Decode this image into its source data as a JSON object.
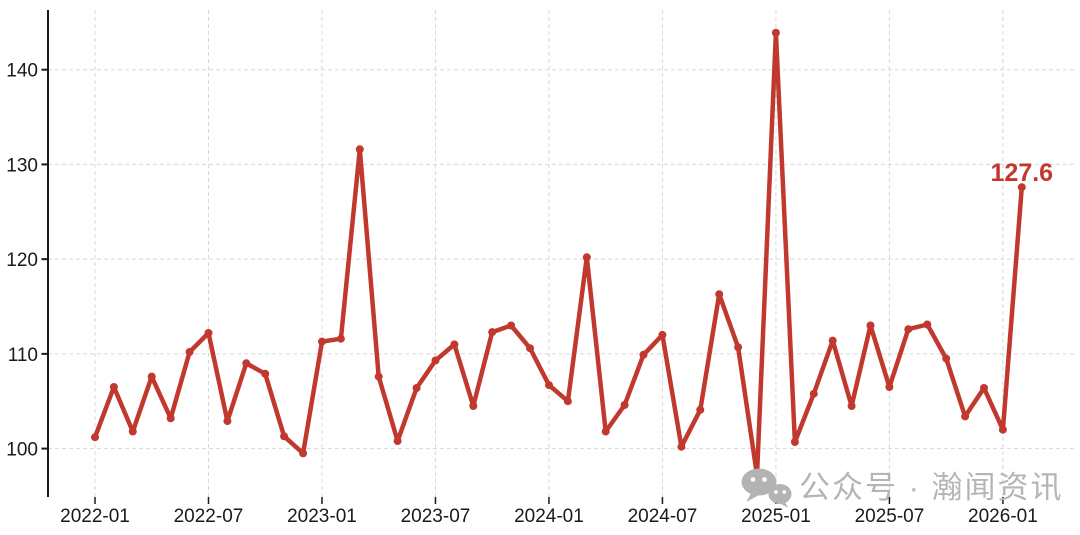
{
  "chart_data": {
    "type": "line",
    "title": "",
    "x": [
      "2022-01",
      "2022-02",
      "2022-03",
      "2022-04",
      "2022-05",
      "2022-06",
      "2022-07",
      "2022-08",
      "2022-09",
      "2022-10",
      "2022-11",
      "2022-12",
      "2023-01",
      "2023-02",
      "2023-03",
      "2023-04",
      "2023-05",
      "2023-06",
      "2023-07",
      "2023-08",
      "2023-09",
      "2023-10",
      "2023-11",
      "2023-12",
      "2024-01",
      "2024-02",
      "2024-03",
      "2024-04",
      "2024-05",
      "2024-06",
      "2024-07",
      "2024-08",
      "2024-09",
      "2024-10",
      "2024-11",
      "2024-12",
      "2025-01",
      "2025-02",
      "2025-03",
      "2025-04",
      "2025-05",
      "2025-06",
      "2025-07",
      "2025-08",
      "2025-09",
      "2025-10",
      "2025-11",
      "2025-12",
      "2026-01",
      "2026-02"
    ],
    "values": [
      101.2,
      106.5,
      101.8,
      107.6,
      103.2,
      110.2,
      112.2,
      102.9,
      109.0,
      107.9,
      101.3,
      99.5,
      111.3,
      111.6,
      131.6,
      107.6,
      100.8,
      106.4,
      109.3,
      111.0,
      104.5,
      112.3,
      113.0,
      110.6,
      106.7,
      105.0,
      120.2,
      101.8,
      104.6,
      109.9,
      112.0,
      100.2,
      104.1,
      116.3,
      110.7,
      97.2,
      143.9,
      100.7,
      105.8,
      111.4,
      104.5,
      113.0,
      106.5,
      112.6,
      113.1,
      109.5,
      103.4,
      106.4,
      102.0,
      127.6
    ],
    "xticks": [
      "2022-01",
      "2022-07",
      "2023-01",
      "2023-07",
      "2024-01",
      "2024-07",
      "2025-01",
      "2025-07",
      "2026-01"
    ],
    "yticks": [
      100,
      110,
      120,
      130,
      140
    ],
    "ylim": [
      96,
      146
    ],
    "grid": "dashed",
    "legend_position": "none",
    "xlabel": "",
    "ylabel": "",
    "line_color": "#c1392e",
    "marker": "circle",
    "last_value_label": "127.6"
  },
  "annotation": {
    "last_value": "127.6",
    "color": "#c1392e"
  },
  "axes_style": {
    "axis_color": "#1a1a1a",
    "grid_color": "#d8d8d8",
    "tick_label_color": "#1a1a1a"
  },
  "watermark": {
    "text": "公众号 · 瀚闻资讯",
    "icon": "wechat-icon",
    "color": "#b5b5b5"
  }
}
